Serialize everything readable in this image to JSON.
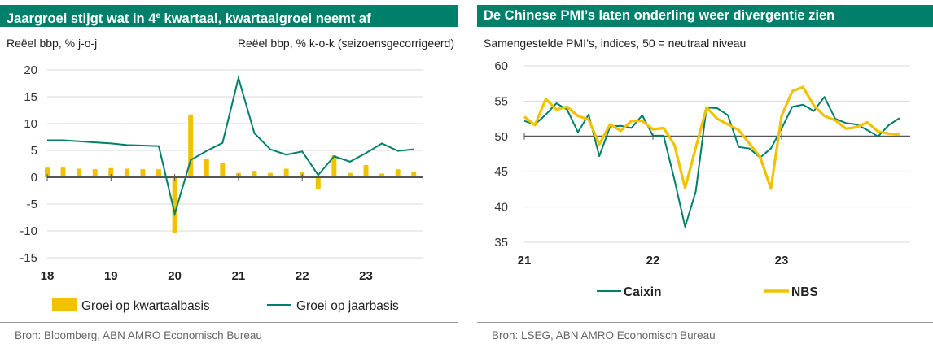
{
  "colors": {
    "teal": "#00806a",
    "gold": "#f2c200",
    "grid": "#d9d9d9",
    "axis": "#555555"
  },
  "left": {
    "title_main": "Jaargroei stijgt wat in 4",
    "title_sup": "e",
    "title_rest": " kwartaal, kwartaalgroei neemt af",
    "subtitle_left": "Reëel bbp, % j-o-j",
    "subtitle_right": "Reëel bbp, % k-o-k (seizoensgecorrigeerd)",
    "source": "Bron: Bloomberg, ABN AMRO Economisch Bureau"
  },
  "right": {
    "title": "De Chinese PMI’s laten onderling weer divergentie zien",
    "subtitle": "Samengestelde PMI’s, indices, 50 = neutraal niveau",
    "source": "Bron: LSEG, ABN AMRO Economisch Bureau"
  },
  "chart_data": [
    {
      "type": "bar+line",
      "title": "Jaargroei stijgt wat in 4e kwartaal, kwartaalgroei neemt af",
      "ylim": [
        -15,
        20
      ],
      "yticks": [
        20,
        15,
        10,
        5,
        0,
        -5,
        -10,
        -15
      ],
      "xticks": [
        "18",
        "19",
        "20",
        "21",
        "22",
        "23"
      ],
      "x_start": 2018.0,
      "x_end": 2023.9,
      "legend": [
        "Groei op kwartaalbasis",
        "Groei op jaarbasis"
      ],
      "series": [
        {
          "name": "Groei op kwartaalbasis",
          "kind": "bar",
          "x": [
            2018.0,
            2018.25,
            2018.5,
            2018.75,
            2019.0,
            2019.25,
            2019.5,
            2019.75,
            2020.0,
            2020.25,
            2020.5,
            2020.75,
            2021.0,
            2021.25,
            2021.5,
            2021.75,
            2022.0,
            2022.25,
            2022.5,
            2022.75,
            2023.0,
            2023.25,
            2023.5,
            2023.75
          ],
          "values": [
            1.8,
            1.8,
            1.6,
            1.5,
            1.7,
            1.6,
            1.5,
            1.5,
            -10.3,
            11.7,
            3.4,
            2.6,
            0.8,
            1.2,
            0.8,
            1.6,
            0.9,
            -2.3,
            4.1,
            0.8,
            2.3,
            0.7,
            1.5,
            1.0
          ]
        },
        {
          "name": "Groei op jaarbasis",
          "kind": "line",
          "x": [
            2018.0,
            2018.25,
            2018.5,
            2018.75,
            2019.0,
            2019.25,
            2019.5,
            2019.75,
            2020.0,
            2020.25,
            2020.5,
            2020.75,
            2021.0,
            2021.25,
            2021.5,
            2021.75,
            2022.0,
            2022.25,
            2022.5,
            2022.75,
            2023.0,
            2023.25,
            2023.5,
            2023.75
          ],
          "values": [
            6.9,
            6.9,
            6.7,
            6.5,
            6.3,
            6.0,
            5.9,
            5.8,
            -6.8,
            3.2,
            4.9,
            6.4,
            18.5,
            8.2,
            5.2,
            4.2,
            4.8,
            0.4,
            3.9,
            2.9,
            4.5,
            6.3,
            4.9,
            5.2
          ]
        }
      ]
    },
    {
      "type": "line",
      "title": "De Chinese PMI’s laten onderling weer divergentie zien",
      "ylim": [
        35,
        60
      ],
      "yticks": [
        60,
        55,
        50,
        45,
        40,
        35
      ],
      "xticks": [
        "21",
        "22",
        "23"
      ],
      "x_start": 2021.0,
      "x_end": 2024.0,
      "legend": [
        "Caixin",
        "NBS"
      ],
      "series": [
        {
          "name": "Caixin",
          "x": [
            2021.0,
            2021.083,
            2021.167,
            2021.25,
            2021.333,
            2021.417,
            2021.5,
            2021.583,
            2021.667,
            2021.75,
            2021.833,
            2021.917,
            2022.0,
            2022.083,
            2022.167,
            2022.25,
            2022.333,
            2022.417,
            2022.5,
            2022.583,
            2022.667,
            2022.75,
            2022.833,
            2022.917,
            2023.0,
            2023.083,
            2023.167,
            2023.25,
            2023.333,
            2023.417,
            2023.5,
            2023.583,
            2023.667,
            2023.75,
            2023.833,
            2023.917
          ],
          "values": [
            52.2,
            51.7,
            53.1,
            54.7,
            53.8,
            50.6,
            53.1,
            47.2,
            51.4,
            51.5,
            51.2,
            53.0,
            50.1,
            50.1,
            43.9,
            37.2,
            42.2,
            54.1,
            54.0,
            53.0,
            48.5,
            48.3,
            47.0,
            48.3,
            51.1,
            54.2,
            54.5,
            53.6,
            55.6,
            52.5,
            51.9,
            51.7,
            50.9,
            50.0,
            51.6,
            52.6
          ]
        },
        {
          "name": "NBS",
          "x": [
            2021.0,
            2021.083,
            2021.167,
            2021.25,
            2021.333,
            2021.417,
            2021.5,
            2021.583,
            2021.667,
            2021.75,
            2021.833,
            2021.917,
            2022.0,
            2022.083,
            2022.167,
            2022.25,
            2022.333,
            2022.417,
            2022.5,
            2022.583,
            2022.667,
            2022.75,
            2022.833,
            2022.917,
            2023.0,
            2023.083,
            2023.167,
            2023.25,
            2023.333,
            2023.417,
            2023.5,
            2023.583,
            2023.667,
            2023.75,
            2023.833,
            2023.917
          ],
          "values": [
            52.8,
            51.6,
            55.3,
            53.8,
            54.2,
            52.9,
            52.4,
            48.9,
            51.7,
            50.8,
            52.2,
            52.2,
            51.0,
            51.2,
            48.8,
            42.7,
            48.4,
            54.1,
            52.5,
            51.7,
            50.9,
            49.0,
            47.1,
            42.6,
            52.9,
            56.4,
            57.0,
            54.4,
            52.9,
            52.3,
            51.1,
            51.3,
            52.0,
            50.7,
            50.4,
            50.3
          ]
        }
      ]
    }
  ]
}
